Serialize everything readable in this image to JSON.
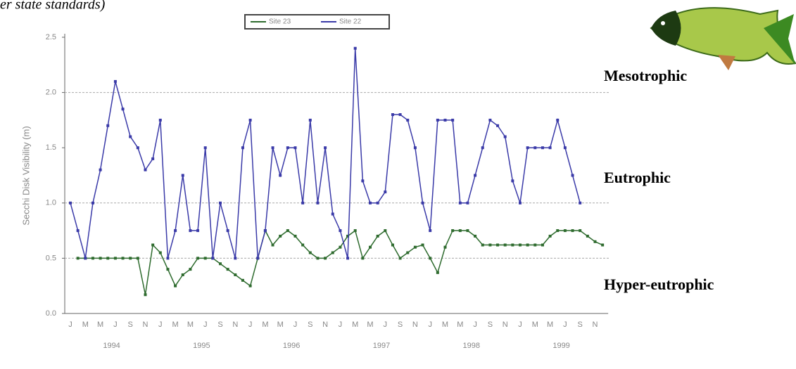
{
  "chart_data": {
    "type": "line",
    "header_fragment": "er state standards)",
    "y_label": "Secchi Disk Visibility (m)",
    "ylim": [
      0,
      2.5
    ],
    "yticks": [
      {
        "value": 0,
        "label": "0.0"
      },
      {
        "value": 0.5,
        "label": "0.5"
      },
      {
        "value": 1,
        "label": "1.0"
      },
      {
        "value": 1.5,
        "label": "1.5"
      },
      {
        "value": 2,
        "label": "2.0"
      },
      {
        "value": 2.5,
        "label": "2.5"
      }
    ],
    "reference_lines": [
      2,
      1,
      0.5
    ],
    "categories": [
      "J",
      null,
      "M",
      null,
      "M",
      null,
      "J",
      null,
      "S",
      null,
      "N",
      null,
      "J",
      null,
      "M",
      null,
      "M",
      null,
      "J",
      null,
      "S",
      null,
      "N",
      null,
      "J",
      null,
      "M",
      null,
      "M",
      null,
      "J",
      null,
      "S",
      null,
      "N",
      null,
      "J",
      null,
      "M",
      null,
      "M",
      null,
      "J",
      null,
      "S",
      null,
      "N",
      null,
      "J",
      null,
      "M",
      null,
      "M",
      null,
      "J",
      null,
      "S",
      null,
      "N",
      null,
      "J",
      null,
      "M",
      null,
      "M",
      null,
      "J",
      null,
      "S",
      null,
      "N",
      null
    ],
    "years": [
      "1994",
      "1995",
      "1996",
      "1997",
      "1998",
      "1999"
    ],
    "series": [
      {
        "name": "Site 23",
        "color": "#2e6b2e",
        "values": [
          null,
          0.5,
          0.5,
          0.5,
          0.5,
          0.5,
          0.5,
          0.5,
          0.5,
          0.5,
          0.17,
          0.62,
          0.55,
          0.4,
          0.25,
          0.35,
          0.4,
          0.5,
          0.5,
          0.5,
          0.45,
          0.4,
          0.35,
          0.3,
          0.25,
          0.5,
          0.75,
          0.62,
          0.7,
          0.75,
          0.7,
          0.62,
          0.55,
          0.5,
          0.5,
          0.55,
          0.6,
          0.7,
          0.75,
          0.5,
          0.6,
          0.7,
          0.75,
          0.62,
          0.5,
          0.55,
          0.6,
          0.62,
          0.5,
          0.37,
          0.6,
          0.75,
          0.75,
          0.75,
          0.7,
          0.62,
          0.62,
          0.62,
          0.62,
          0.62,
          0.62,
          0.62,
          0.62,
          0.62,
          0.7,
          0.75,
          0.75,
          0.75,
          0.75,
          0.7,
          0.65,
          0.62
        ]
      },
      {
        "name": "Site 22",
        "color": "#3a3aa8",
        "values": [
          1.0,
          0.75,
          0.5,
          1.0,
          1.3,
          1.7,
          2.1,
          1.85,
          1.6,
          1.5,
          1.3,
          1.4,
          1.75,
          0.5,
          0.75,
          1.25,
          0.75,
          0.75,
          1.5,
          0.5,
          1.0,
          0.75,
          0.5,
          1.5,
          1.75,
          0.5,
          0.75,
          1.5,
          1.25,
          1.5,
          1.5,
          1.0,
          1.75,
          1.0,
          1.5,
          0.9,
          0.75,
          0.5,
          2.4,
          1.2,
          1.0,
          1.0,
          1.1,
          1.8,
          1.8,
          1.75,
          1.5,
          1.0,
          0.75,
          1.75,
          1.75,
          1.75,
          1.0,
          1.0,
          1.25,
          1.5,
          1.75,
          1.7,
          1.6,
          1.2,
          1.0,
          1.5,
          1.5,
          1.5,
          1.5,
          1.75,
          1.5,
          1.25,
          1.0,
          null,
          null,
          null
        ]
      }
    ],
    "annotations": [
      "Mesotrophic",
      "Eutrophic",
      "Hyper-eutrophic"
    ]
  }
}
